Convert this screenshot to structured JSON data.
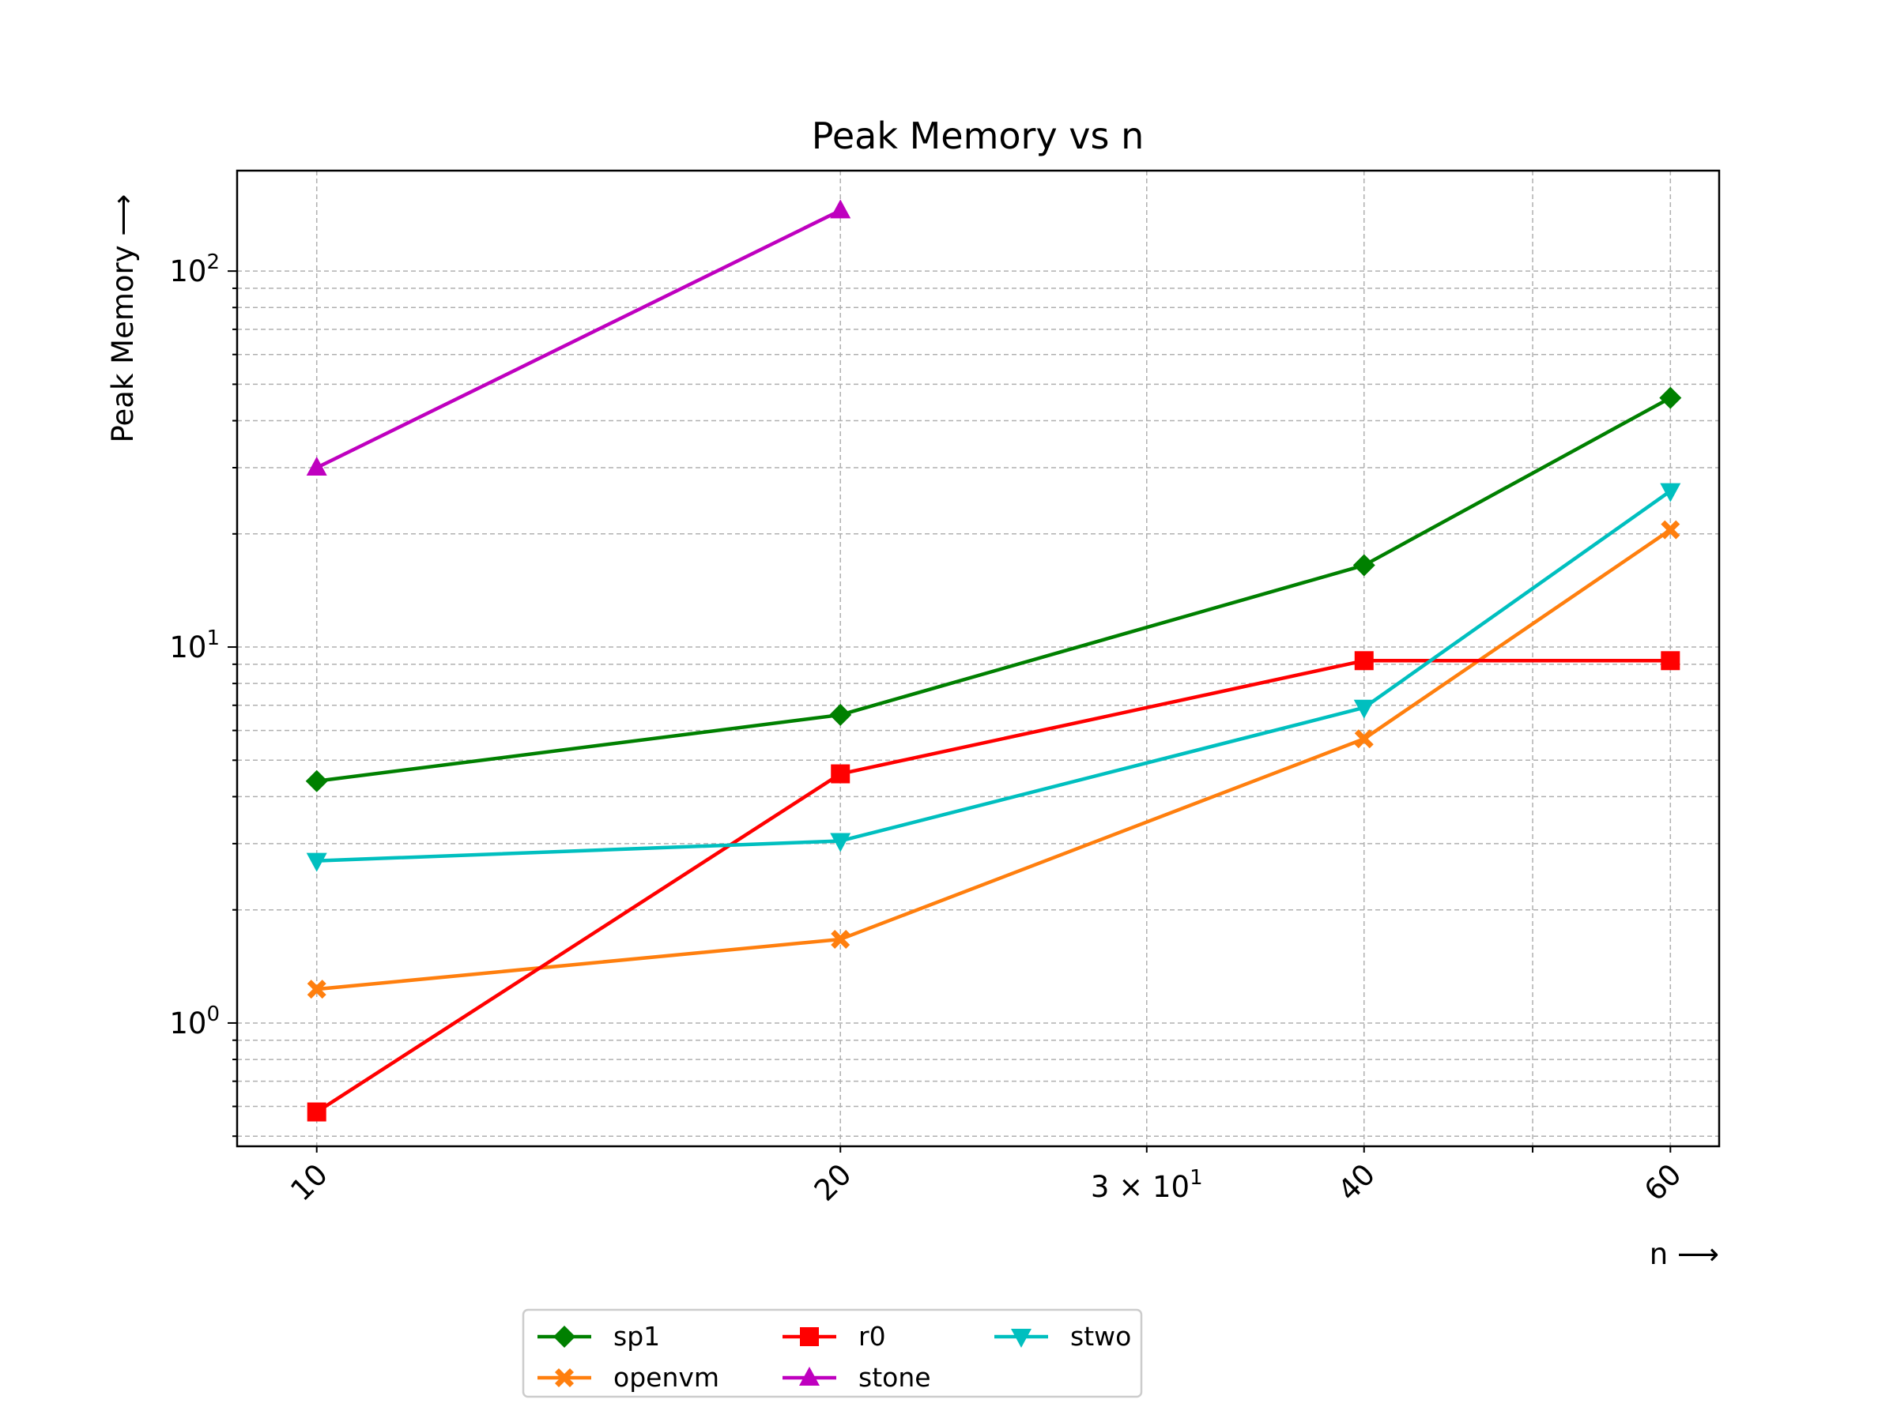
{
  "chart_data": {
    "type": "line",
    "title": "Peak Memory vs n",
    "xlabel": "n ⟶",
    "ylabel": "Peak Memory ⟶",
    "xscale": "log",
    "yscale": "log",
    "xlim": [
      9.0,
      64.0
    ],
    "ylim": [
      0.47,
      185
    ],
    "x_ticks": [
      {
        "value": 10,
        "label": "10"
      },
      {
        "value": 20,
        "label": "20"
      },
      {
        "value": 40,
        "label": "40"
      },
      {
        "value": 60,
        "label": "60"
      }
    ],
    "x_minor_tick": {
      "value": 30,
      "label_base": "3 × 10",
      "label_exp": "1"
    },
    "y_ticks": [
      {
        "value": 1,
        "base": "10",
        "exp": "0"
      },
      {
        "value": 10,
        "base": "10",
        "exp": "1"
      },
      {
        "value": 100,
        "base": "10",
        "exp": "2"
      }
    ],
    "grid": true,
    "legend_position": "below center",
    "series": [
      {
        "name": "sp1",
        "color": "#008000",
        "marker": "diamond",
        "points": [
          [
            10,
            4.4
          ],
          [
            20,
            6.6
          ],
          [
            40,
            16.5
          ],
          [
            60,
            46.0
          ]
        ]
      },
      {
        "name": "openvm",
        "color": "#ff7f0e",
        "marker": "x-filled",
        "points": [
          [
            10,
            1.23
          ],
          [
            20,
            1.67
          ],
          [
            40,
            5.7
          ],
          [
            60,
            20.5
          ]
        ]
      },
      {
        "name": "r0",
        "color": "#ff0000",
        "marker": "square",
        "points": [
          [
            10,
            0.58
          ],
          [
            20,
            4.6
          ],
          [
            40,
            9.2
          ],
          [
            60,
            9.2
          ]
        ]
      },
      {
        "name": "stone",
        "color": "#bf00bf",
        "marker": "triangle-up",
        "points": [
          [
            10,
            30.0
          ],
          [
            20,
            145.0
          ]
        ]
      },
      {
        "name": "stwo",
        "color": "#00bfbf",
        "marker": "triangle-down",
        "points": [
          [
            10,
            2.7
          ],
          [
            20,
            3.05
          ],
          [
            40,
            6.9
          ],
          [
            60,
            26.0
          ]
        ]
      }
    ]
  }
}
